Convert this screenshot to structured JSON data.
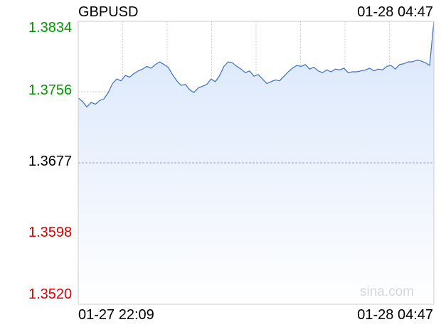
{
  "header": {
    "symbol": "GBPUSD",
    "timestamp": "01-28 04:47"
  },
  "watermark": "sina.com",
  "colors": {
    "up": "#009900",
    "down": "#dd0000",
    "neutral": "#000000",
    "line": "#3a6fc4",
    "fill": "#d8e6fb"
  },
  "chart_data": {
    "type": "area",
    "reference_value": 1.3677,
    "y_ticks": [
      {
        "label": "1.3834",
        "value": 1.3834,
        "color": "#009900"
      },
      {
        "label": "1.3756",
        "value": 1.3756,
        "color": "#009900"
      },
      {
        "label": "1.3677",
        "value": 1.3677,
        "color": "#000000"
      },
      {
        "label": "1.3598",
        "value": 1.3598,
        "color": "#dd0000"
      },
      {
        "label": "1.3520",
        "value": 1.352,
        "color": "#dd0000"
      }
    ],
    "x_tick_labels": [
      "01-27 22:09",
      "01-28 04:47"
    ],
    "ylim": [
      1.352,
      1.3834
    ],
    "grid": true,
    "values": [
      1.3749,
      1.3745,
      1.3739,
      1.3744,
      1.3742,
      1.3746,
      1.3748,
      1.3755,
      1.3765,
      1.377,
      1.3768,
      1.3774,
      1.3772,
      1.3776,
      1.3779,
      1.3781,
      1.3784,
      1.3782,
      1.3786,
      1.3789,
      1.3786,
      1.3783,
      1.3775,
      1.3768,
      1.3763,
      1.3764,
      1.3758,
      1.3755,
      1.376,
      1.3762,
      1.3764,
      1.377,
      1.3767,
      1.3774,
      1.3784,
      1.3789,
      1.3788,
      1.3784,
      1.3781,
      1.3777,
      1.3779,
      1.3773,
      1.3775,
      1.377,
      1.3765,
      1.3767,
      1.3769,
      1.3768,
      1.3773,
      1.3778,
      1.3782,
      1.3785,
      1.3784,
      1.3786,
      1.3781,
      1.3783,
      1.3779,
      1.3777,
      1.378,
      1.3778,
      1.3781,
      1.378,
      1.3782,
      1.3777,
      1.3778,
      1.3778,
      1.3779,
      1.378,
      1.3782,
      1.3779,
      1.3781,
      1.378,
      1.3784,
      1.3785,
      1.3781,
      1.3786,
      1.3787,
      1.3789,
      1.3789,
      1.3791,
      1.379,
      1.3788,
      1.3785,
      1.3834
    ]
  }
}
